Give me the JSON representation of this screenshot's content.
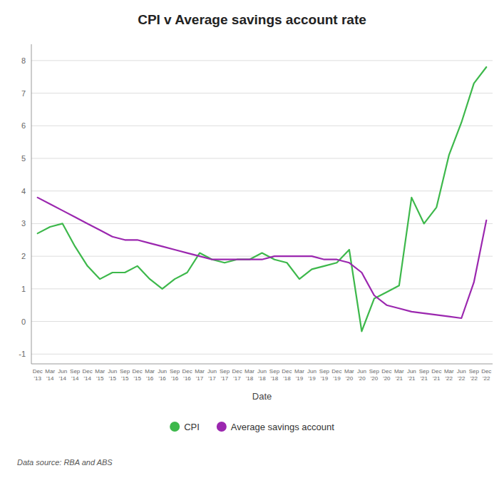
{
  "chart_data": {
    "type": "line",
    "title": "CPI v Average savings account rate",
    "xlabel": "Date",
    "annotations": [
      "Data source: RBA and ABS"
    ],
    "categories": [
      "Dec\n'13",
      "Mar\n'14",
      "Jun\n'14",
      "Sep\n'14",
      "Dec\n'14",
      "Mar\n'15",
      "Jun\n'15",
      "Sep\n'15",
      "Dec\n'15",
      "Mar\n'16",
      "Jun\n'16",
      "Sep\n'16",
      "Dec\n'16",
      "Mar\n'17",
      "Jun\n'17",
      "Sep\n'17",
      "Dec\n'17",
      "Mar\n'18",
      "Jun\n'18",
      "Sep\n'18",
      "Dec\n'18",
      "Mar\n'19",
      "Jun\n'19",
      "Sep\n'19",
      "Dec\n'19",
      "Mar\n'20",
      "Jun\n'20",
      "Sep\n'20",
      "Dec\n'20",
      "Mar\n'21",
      "Jun\n'21",
      "Sep\n'21",
      "Dec\n'21",
      "Mar\n'22",
      "Jun\n'22",
      "Sep\n'22",
      "Dec\n'22"
    ],
    "series": [
      {
        "name": "CPI",
        "color": "#3db84b",
        "values": [
          2.7,
          2.9,
          3.0,
          2.3,
          1.7,
          1.3,
          1.5,
          1.5,
          1.7,
          1.3,
          1.0,
          1.3,
          1.5,
          2.1,
          1.9,
          1.8,
          1.9,
          1.9,
          2.1,
          1.9,
          1.8,
          1.3,
          1.6,
          1.7,
          1.8,
          2.2,
          -0.3,
          0.7,
          0.9,
          1.1,
          3.8,
          3.0,
          3.5,
          5.1,
          6.1,
          7.3,
          7.8
        ]
      },
      {
        "name": "Average savings account",
        "color": "#9b27af",
        "values": [
          3.8,
          3.6,
          3.4,
          3.2,
          3.0,
          2.8,
          2.6,
          2.5,
          2.5,
          2.4,
          2.3,
          2.2,
          2.1,
          2.0,
          1.9,
          1.9,
          1.9,
          1.9,
          1.9,
          2.0,
          2.0,
          2.0,
          2.0,
          1.9,
          1.9,
          1.8,
          1.5,
          0.8,
          0.5,
          0.4,
          0.3,
          0.25,
          0.2,
          0.15,
          0.1,
          1.2,
          3.1
        ]
      }
    ],
    "ylim": [
      -1.3,
      8.5
    ],
    "yticks": [
      -1,
      0,
      1,
      2,
      3,
      4,
      5,
      6,
      7,
      8
    ],
    "grid": true,
    "legend": "bottom"
  }
}
